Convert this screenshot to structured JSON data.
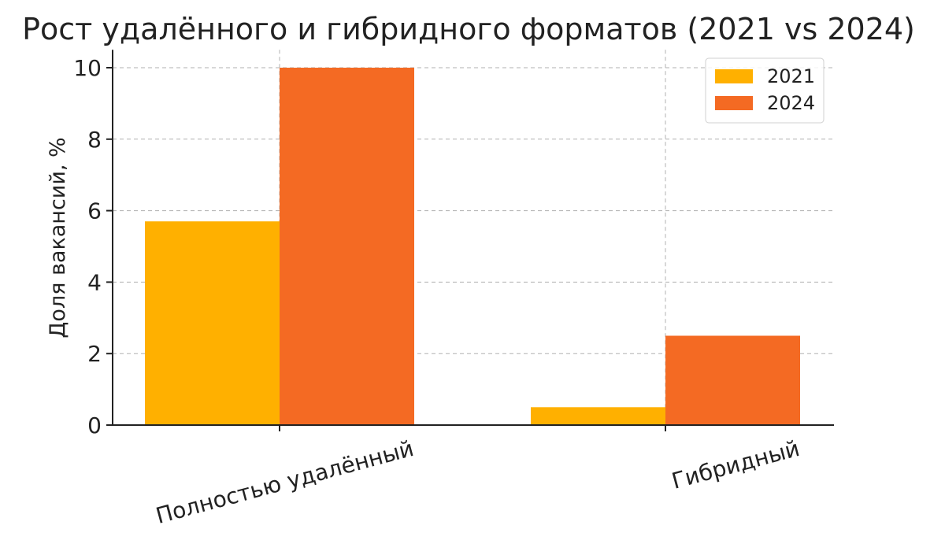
{
  "chart_data": {
    "type": "bar",
    "title": "Рост удалённого и гибридного форматов (2021 vs 2024)",
    "xlabel": "",
    "ylabel": "Доля вакансий, %",
    "categories": [
      "Полностью удалённый",
      "Гибридный"
    ],
    "series": [
      {
        "name": "2021",
        "color": "#FFB000",
        "values": [
          5.7,
          0.5
        ]
      },
      {
        "name": "2024",
        "color": "#F46A23",
        "values": [
          10.0,
          2.5
        ]
      }
    ],
    "ylim": [
      0,
      10.5
    ],
    "yticks": [
      0,
      2,
      4,
      6,
      8,
      10
    ],
    "grid": true,
    "legend_position": "top-right"
  }
}
